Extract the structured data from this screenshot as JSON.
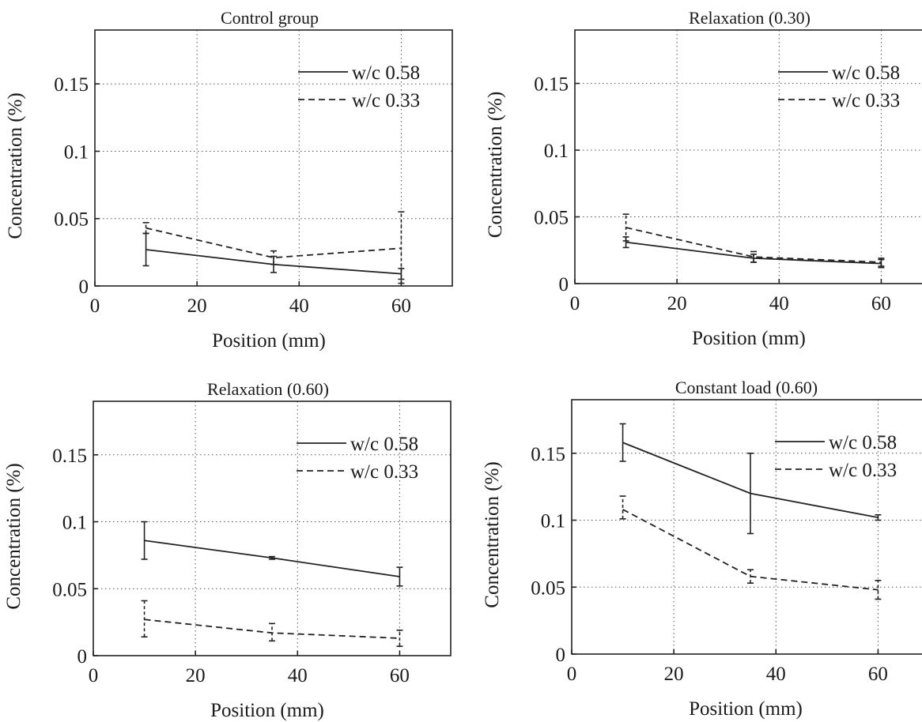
{
  "chart_data": [
    {
      "type": "line",
      "title": "Control group",
      "xlabel": "Position (mm)",
      "ylabel": "Concentration (%)",
      "xlim": [
        0,
        70
      ],
      "ylim": [
        0,
        0.19
      ],
      "xticks": [
        "0",
        "20",
        "40",
        "60"
      ],
      "yticks": [
        "0",
        "0.05",
        "0.1",
        "0.15"
      ],
      "grid": true,
      "legend": "top-right",
      "x": [
        10,
        35,
        60
      ],
      "series": [
        {
          "name": "w/c 0.58",
          "style": "solid",
          "values": [
            0.027,
            0.016,
            0.009
          ],
          "err_low": [
            0.015,
            0.01,
            0.005
          ],
          "err_high": [
            0.039,
            0.022,
            0.013
          ]
        },
        {
          "name": "w/c 0.33",
          "style": "dashed",
          "values": [
            0.043,
            0.021,
            0.028
          ],
          "err_low": [
            0.039,
            0.016,
            0.002
          ],
          "err_high": [
            0.047,
            0.026,
            0.055
          ]
        }
      ]
    },
    {
      "type": "line",
      "title": "Relaxation (0.30)",
      "xlabel": "Position (mm)",
      "ylabel": "Concentration (%)",
      "xlim": [
        0,
        70
      ],
      "ylim": [
        0,
        0.19
      ],
      "xticks": [
        "0",
        "20",
        "40",
        "60"
      ],
      "yticks": [
        "0",
        "0.05",
        "0.1",
        "0.15"
      ],
      "grid": true,
      "legend": "top-right",
      "x": [
        10,
        35,
        60
      ],
      "series": [
        {
          "name": "w/c 0.58",
          "style": "solid",
          "values": [
            0.031,
            0.019,
            0.015
          ],
          "err_low": [
            0.027,
            0.016,
            0.012
          ],
          "err_high": [
            0.035,
            0.022,
            0.018
          ]
        },
        {
          "name": "w/c 0.33",
          "style": "dashed",
          "values": [
            0.042,
            0.02,
            0.016
          ],
          "err_low": [
            0.032,
            0.016,
            0.013
          ],
          "err_high": [
            0.052,
            0.024,
            0.019
          ]
        }
      ]
    },
    {
      "type": "line",
      "title": "Relaxation (0.60)",
      "xlabel": "Position (mm)",
      "ylabel": "Concentration (%)",
      "xlim": [
        0,
        70
      ],
      "ylim": [
        0,
        0.19
      ],
      "xticks": [
        "0",
        "20",
        "40",
        "60"
      ],
      "yticks": [
        "0",
        "0.05",
        "0.1",
        "0.15"
      ],
      "grid": true,
      "legend": "top-right",
      "x": [
        10,
        35,
        60
      ],
      "series": [
        {
          "name": "w/c 0.58",
          "style": "solid",
          "values": [
            0.086,
            0.073,
            0.059
          ],
          "err_low": [
            0.072,
            0.072,
            0.052
          ],
          "err_high": [
            0.1,
            0.074,
            0.066
          ]
        },
        {
          "name": "w/c 0.33",
          "style": "dashed",
          "values": [
            0.027,
            0.017,
            0.013
          ],
          "err_low": [
            0.014,
            0.011,
            0.007
          ],
          "err_high": [
            0.041,
            0.024,
            0.019
          ]
        }
      ]
    },
    {
      "type": "line",
      "title": "Constant load (0.60)",
      "xlabel": "Position (mm)",
      "ylabel": "Concentration (%)",
      "xlim": [
        0,
        70
      ],
      "ylim": [
        0,
        0.19
      ],
      "xticks": [
        "0",
        "20",
        "40",
        "60"
      ],
      "yticks": [
        "0",
        "0.05",
        "0.1",
        "0.15"
      ],
      "grid": true,
      "legend": "top-right",
      "x": [
        10,
        35,
        60
      ],
      "series": [
        {
          "name": "w/c 0.58",
          "style": "solid",
          "values": [
            0.158,
            0.12,
            0.102
          ],
          "err_low": [
            0.144,
            0.09,
            0.1
          ],
          "err_high": [
            0.172,
            0.15,
            0.104
          ]
        },
        {
          "name": "w/c 0.33",
          "style": "dashed",
          "values": [
            0.108,
            0.058,
            0.048
          ],
          "err_low": [
            0.101,
            0.053,
            0.041
          ],
          "err_high": [
            0.118,
            0.063,
            0.055
          ]
        }
      ]
    }
  ]
}
